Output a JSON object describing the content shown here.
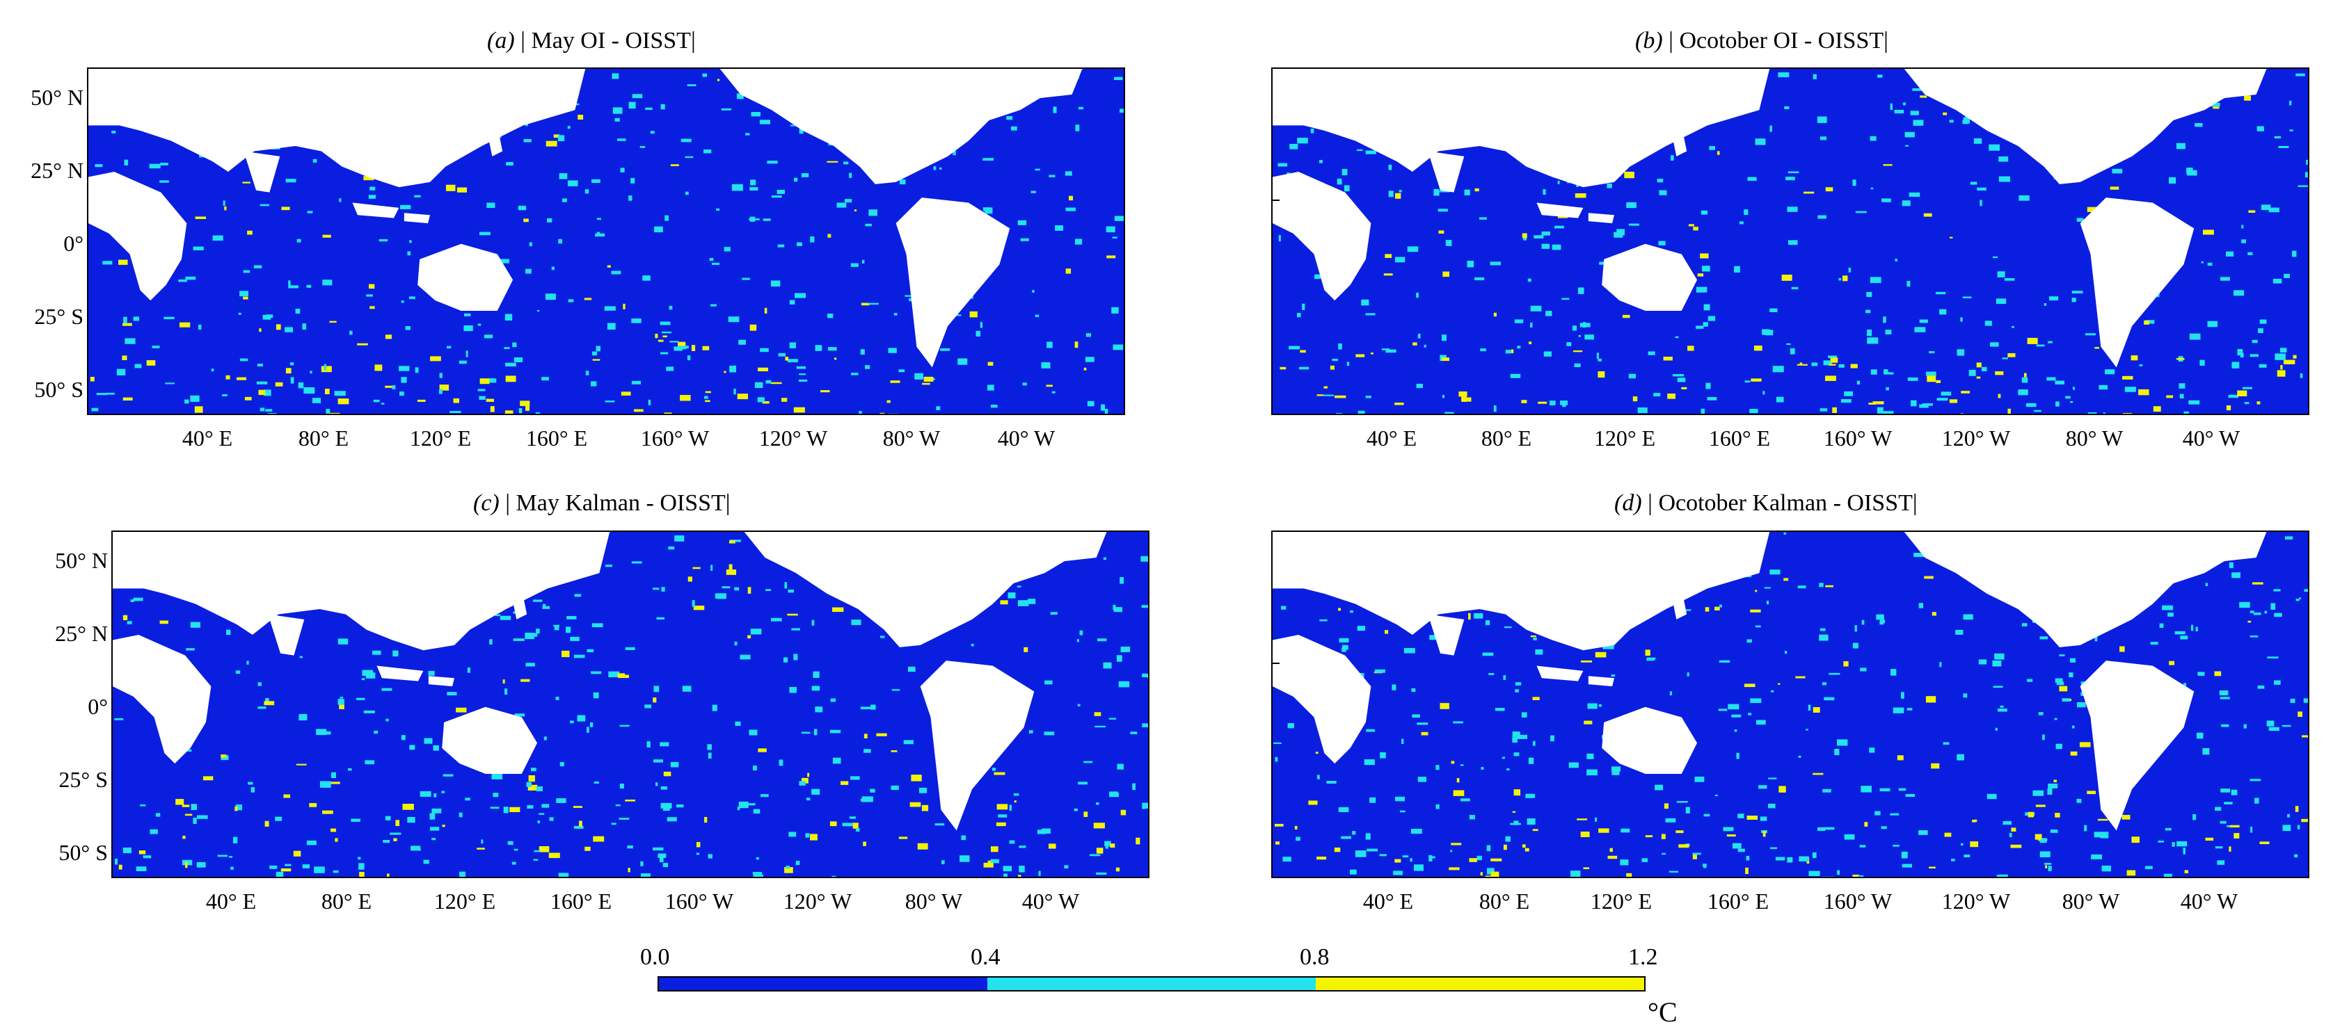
{
  "panels": [
    {
      "id": "a",
      "tag": "(a)",
      "title": "| May  OI - OISST|",
      "ylabels": [
        "50° N",
        "25° N",
        "0°",
        "25° S",
        "50° S"
      ],
      "xlabels": [
        "40° E",
        "80° E",
        "120° E",
        "160° E",
        "160° W",
        "120° W",
        "80° W",
        "40° W"
      ]
    },
    {
      "id": "b",
      "tag": "(b)",
      "title": "| Ocotober  OI - OISST|",
      "ylabels": [],
      "xlabels": [
        "40° E",
        "80° E",
        "120° E",
        "160° E",
        "160° W",
        "120° W",
        "80° W",
        "40° W"
      ]
    },
    {
      "id": "c",
      "tag": "(c)",
      "title": "| May  Kalman - OISST|",
      "ylabels": [
        "50° N",
        "25° N",
        "0°",
        "25° S",
        "50° S"
      ],
      "xlabels": [
        "40° E",
        "80° E",
        "120° E",
        "160° E",
        "160° W",
        "120° W",
        "80° W",
        "40° W"
      ]
    },
    {
      "id": "d",
      "tag": "(d)",
      "title": "| Ocotober  Kalman - OISST|",
      "ylabels": [],
      "xlabels": [
        "40° E",
        "80° E",
        "120° E",
        "160° E",
        "160° W",
        "120° W",
        "80° W",
        "40° W"
      ]
    }
  ],
  "colorbar": {
    "ticks": [
      "0.0",
      "0.4",
      "0.8",
      "1.2"
    ],
    "unit": "°C",
    "colors": [
      "#0a1ee0",
      "#22e3ee",
      "#f4f400"
    ]
  },
  "land_color": "#ffffff"
}
